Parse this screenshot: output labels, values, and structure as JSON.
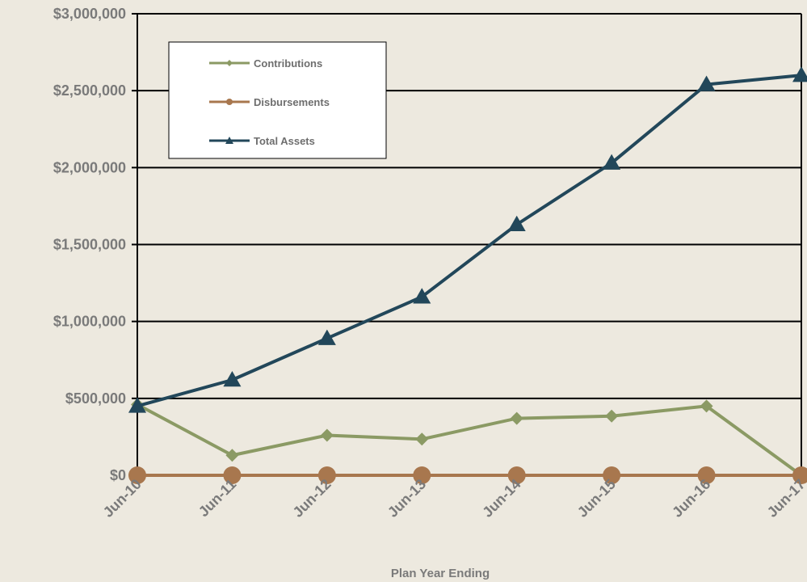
{
  "chart_data": {
    "type": "line",
    "title": "",
    "xlabel": "Plan Year Ending",
    "ylabel": "",
    "categories": [
      "Jun-10",
      "Jun-11",
      "Jun-12",
      "Jun-13",
      "Jun-14",
      "Jun-15",
      "Jun-16",
      "Jun-17"
    ],
    "ylim": [
      0,
      3000000
    ],
    "yticks": [
      0,
      500000,
      1000000,
      1500000,
      2000000,
      2500000,
      3000000
    ],
    "ytick_labels": [
      "$0",
      "$500,000",
      "$1,000,000",
      "$1,500,000",
      "$2,000,000",
      "$2,500,000",
      "$3,000,000"
    ],
    "grid": "horizontal",
    "legend_position": "top-left",
    "series": [
      {
        "name": "Contributions",
        "color": "#8b9a64",
        "marker": "diamond",
        "values": [
          460000,
          130000,
          260000,
          235000,
          370000,
          385000,
          450000,
          0
        ]
      },
      {
        "name": "Disbursements",
        "color": "#a8774e",
        "marker": "circle",
        "values": [
          0,
          0,
          0,
          0,
          0,
          0,
          0,
          0
        ]
      },
      {
        "name": "Total Assets",
        "color": "#22475a",
        "marker": "triangle",
        "values": [
          450000,
          620000,
          890000,
          1160000,
          1630000,
          2030000,
          2540000,
          2600000
        ]
      }
    ]
  }
}
